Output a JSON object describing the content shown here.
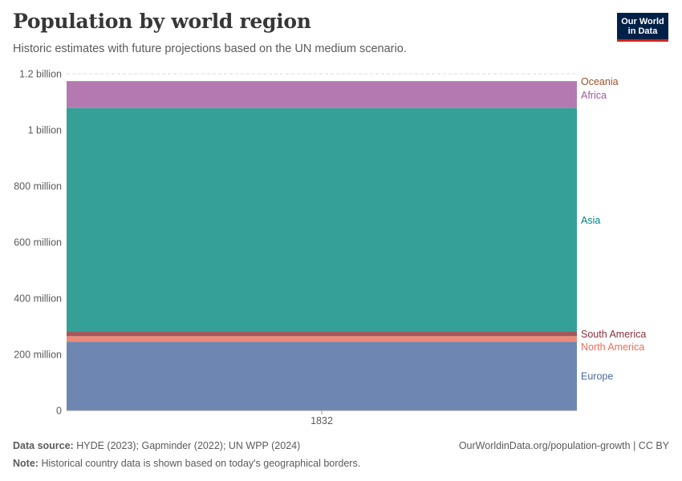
{
  "header": {
    "title": "Population by world region",
    "subtitle": "Historic estimates with future projections based on the UN medium scenario."
  },
  "logo": {
    "line1": "Our World",
    "line2": "in Data"
  },
  "footer": {
    "source_label": "Data source:",
    "source_text": "HYDE (2023); Gapminder (2022); UN WPP (2024)",
    "note_label": "Note:",
    "note_text": "Historical country data is shown based on today's geographical borders.",
    "credit": "OurWorldinData.org/population-growth | CC BY"
  },
  "chart_data": {
    "type": "area",
    "stacked": true,
    "x": [
      1832
    ],
    "xticks": [
      "1832"
    ],
    "ylim": [
      0,
      1200000000
    ],
    "yticks": [
      {
        "value": 0,
        "label": "0"
      },
      {
        "value": 200000000,
        "label": "200 million"
      },
      {
        "value": 400000000,
        "label": "400 million"
      },
      {
        "value": 600000000,
        "label": "600 million"
      },
      {
        "value": 800000000,
        "label": "800 million"
      },
      {
        "value": 1000000000,
        "label": "1 billion"
      },
      {
        "value": 1200000000,
        "label": "1.2 billion"
      }
    ],
    "grid": true,
    "legend": "right-inline",
    "series": [
      {
        "name": "Europe",
        "values": [
          245000000
        ],
        "color": "#6d87b2",
        "label_color": "#4c6a9c"
      },
      {
        "name": "North America",
        "values": [
          20000000
        ],
        "color": "#ea8a7a",
        "label_color": "#e56e5a"
      },
      {
        "name": "South America",
        "values": [
          15000000
        ],
        "color": "#a2575b",
        "label_color": "#883039"
      },
      {
        "name": "Asia",
        "values": [
          798000000
        ],
        "color": "#34a096",
        "label_color": "#00847e"
      },
      {
        "name": "Africa",
        "values": [
          94000000
        ],
        "color": "#b479b1",
        "label_color": "#a2559c"
      },
      {
        "name": "Oceania",
        "values": [
          2000000
        ],
        "color": "#b28048",
        "label_color": "#9a5129"
      }
    ]
  }
}
